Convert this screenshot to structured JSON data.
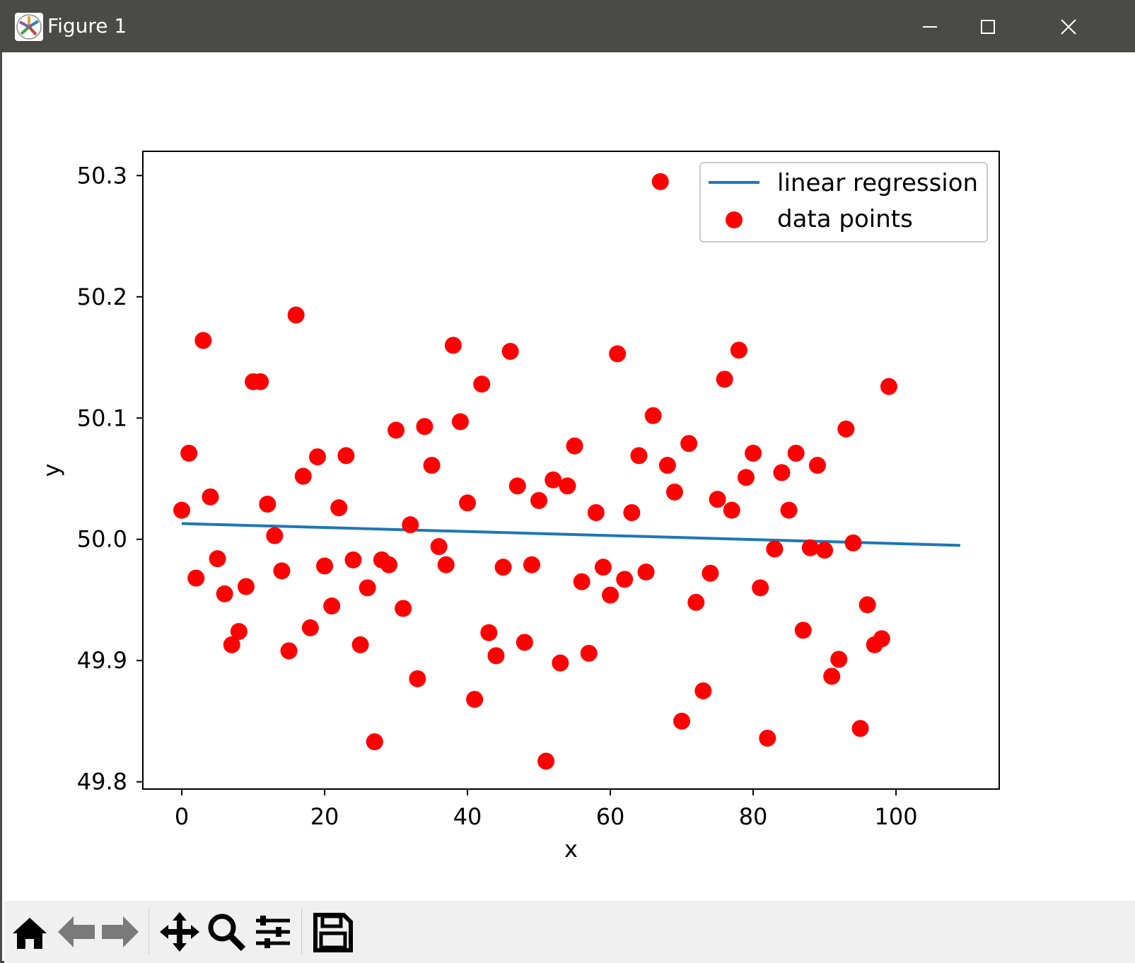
{
  "window": {
    "title": "Figure 1"
  },
  "toolbar": {
    "buttons": [
      "home-icon",
      "back-arrow-icon",
      "forward-arrow-icon",
      "pan-icon",
      "zoom-icon",
      "configure-subplots-icon",
      "save-icon"
    ]
  },
  "colors": {
    "titlebar": "#4a4a46",
    "line": "#1f77b4",
    "points": "#ff0000"
  },
  "chart_data": {
    "type": "scatter",
    "title": "",
    "xlabel": "x",
    "ylabel": "y",
    "xlim": [
      -5.45,
      114.45
    ],
    "ylim": [
      49.794,
      50.32
    ],
    "xticks": [
      0,
      20,
      40,
      60,
      80,
      100
    ],
    "yticks": [
      49.8,
      49.9,
      50.0,
      50.1,
      50.2,
      50.3
    ],
    "ytick_labels": [
      "49.8",
      "49.9",
      "50.0",
      "50.1",
      "50.2",
      "50.3"
    ],
    "xtick_labels": [
      "0",
      "20",
      "40",
      "60",
      "80",
      "100"
    ],
    "legend": {
      "location": "top-right",
      "entries": [
        "linear regression",
        "data points"
      ]
    },
    "series": [
      {
        "name": "linear regression",
        "kind": "line",
        "x": [
          0,
          109
        ],
        "y": [
          50.013,
          49.995
        ]
      },
      {
        "name": "data points",
        "kind": "scatter",
        "x": [
          0,
          1,
          2,
          3,
          4,
          5,
          6,
          7,
          8,
          9,
          10,
          11,
          12,
          13,
          14,
          15,
          16,
          17,
          18,
          19,
          20,
          21,
          22,
          23,
          24,
          25,
          26,
          27,
          28,
          29,
          30,
          31,
          32,
          33,
          34,
          35,
          36,
          37,
          38,
          39,
          40,
          41,
          42,
          43,
          44,
          45,
          46,
          47,
          48,
          49,
          50,
          51,
          52,
          53,
          54,
          55,
          56,
          57,
          58,
          59,
          60,
          61,
          62,
          63,
          64,
          65,
          66,
          67,
          68,
          69,
          70,
          71,
          72,
          73,
          74,
          75,
          76,
          77,
          78,
          79,
          80,
          81,
          82,
          83,
          84,
          85,
          86,
          87,
          88,
          89,
          90,
          91,
          92,
          93,
          94,
          95,
          96,
          97,
          98,
          99
        ],
        "y": [
          50.024,
          50.071,
          49.968,
          50.164,
          50.035,
          49.984,
          49.955,
          49.913,
          49.924,
          49.961,
          50.13,
          50.13,
          50.029,
          50.003,
          49.974,
          49.908,
          50.185,
          50.052,
          49.927,
          50.068,
          49.978,
          49.945,
          50.026,
          50.069,
          49.983,
          49.913,
          49.96,
          49.833,
          49.983,
          49.979,
          50.09,
          49.943,
          50.012,
          49.885,
          50.093,
          50.061,
          49.994,
          49.979,
          50.16,
          50.097,
          50.03,
          49.868,
          50.128,
          49.923,
          49.904,
          49.977,
          50.155,
          50.044,
          49.915,
          49.979,
          50.032,
          49.817,
          50.049,
          49.898,
          50.044,
          50.077,
          49.965,
          49.906,
          50.022,
          49.977,
          49.954,
          50.153,
          49.967,
          50.022,
          50.069,
          49.973,
          50.102,
          50.295,
          50.061,
          50.039,
          49.85,
          50.079,
          49.948,
          49.875,
          49.972,
          50.033,
          50.132,
          50.024,
          50.156,
          50.051,
          50.071,
          49.96,
          49.836,
          49.992,
          50.055,
          50.024,
          50.071,
          49.925,
          49.993,
          50.061,
          49.991,
          49.887,
          49.901,
          50.091,
          49.997,
          49.844,
          49.946,
          49.913,
          49.918,
          50.126
        ]
      }
    ]
  }
}
